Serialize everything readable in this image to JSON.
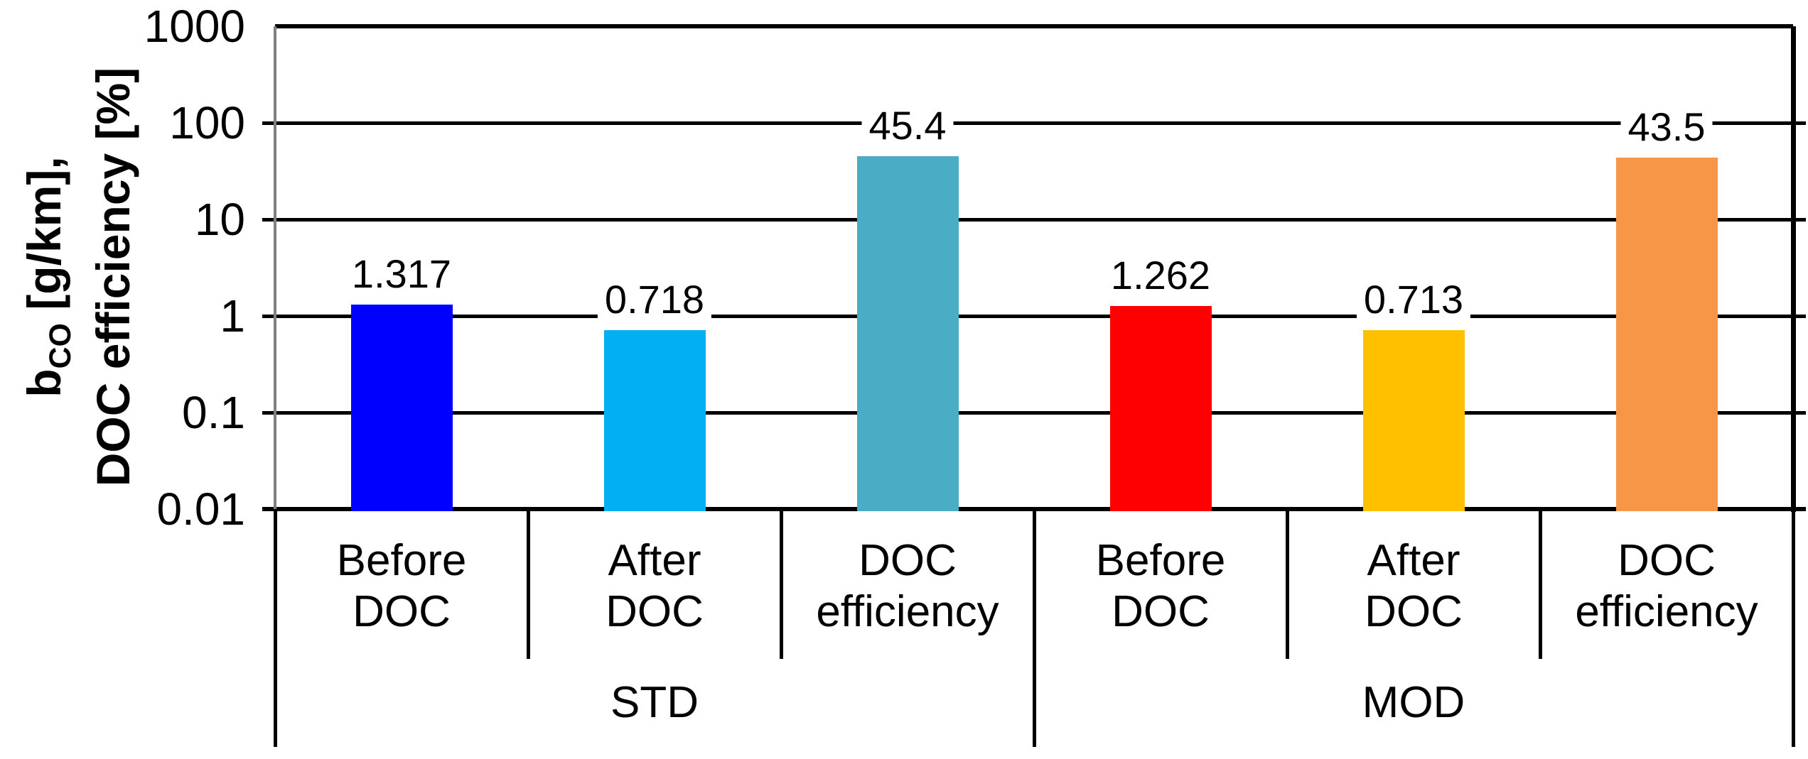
{
  "chart_data": {
    "type": "bar",
    "title": "",
    "yscale": "log",
    "ylim": [
      0.01,
      1000
    ],
    "grid": true,
    "legend": "none",
    "ylabel": {
      "line1_main": "b",
      "line1_sub": "CO",
      "line1_rest": " [g/km],",
      "line2": "DOC efficiency [%]"
    },
    "yticks": [
      {
        "label": "1000",
        "value": 1000
      },
      {
        "label": "100",
        "value": 100
      },
      {
        "label": "10",
        "value": 10
      },
      {
        "label": "1",
        "value": 1
      },
      {
        "label": "0.1",
        "value": 0.1
      },
      {
        "label": "0.01",
        "value": 0.01
      }
    ],
    "groups": [
      {
        "label": "STD"
      },
      {
        "label": "MOD"
      }
    ],
    "categories": [
      {
        "lines": [
          "Before",
          "DOC"
        ]
      },
      {
        "lines": [
          "After",
          "DOC"
        ]
      },
      {
        "lines": [
          "DOC",
          "efficiency"
        ]
      },
      {
        "lines": [
          "Before",
          "DOC"
        ]
      },
      {
        "lines": [
          "After",
          "DOC"
        ]
      },
      {
        "lines": [
          "DOC",
          "efficiency"
        ]
      }
    ],
    "values": [
      1.317,
      0.718,
      45.4,
      1.262,
      0.713,
      43.5
    ],
    "value_labels": [
      "1.317",
      "0.718",
      "45.4",
      "1.262",
      "0.713",
      "43.5"
    ],
    "bar_colors": [
      "#0000FF",
      "#00B0F0",
      "#4BACC6",
      "#FF0000",
      "#FFC000",
      "#F79646"
    ],
    "axis_colors": {
      "left_axis": "#808080",
      "lines": "#000000",
      "text": "#000000"
    }
  }
}
